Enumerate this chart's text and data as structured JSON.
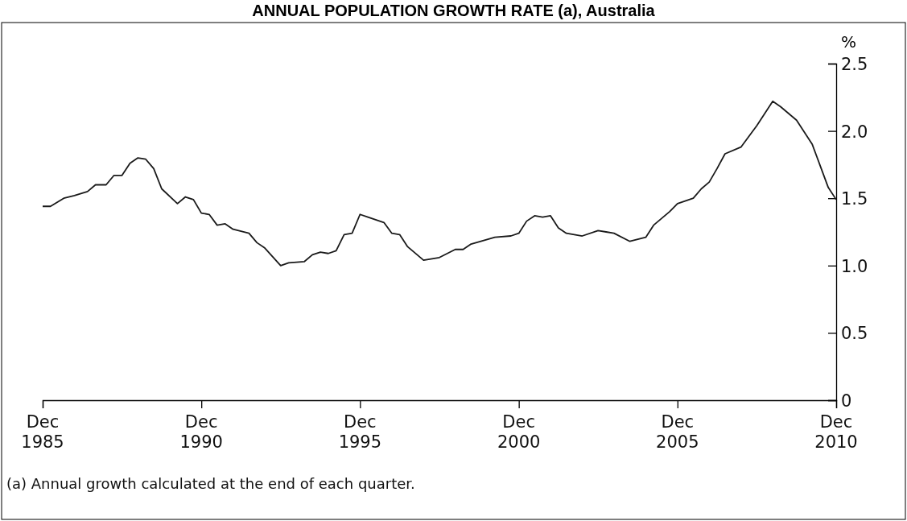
{
  "chart_data": {
    "type": "line",
    "title": "ANNUAL POPULATION GROWTH RATE (a), Australia",
    "ylabel": "%",
    "annotations": [
      "(a) Annual growth calculated at the end of each quarter."
    ],
    "xlim": [
      "1985-12",
      "2010-12"
    ],
    "xticks": [
      {
        "value": "1985-12",
        "label": "Dec 1985"
      },
      {
        "value": "1990-12",
        "label": "Dec 1990"
      },
      {
        "value": "1995-12",
        "label": "Dec 1995"
      },
      {
        "value": "2000-12",
        "label": "Dec 2000"
      },
      {
        "value": "2005-12",
        "label": "Dec 2005"
      },
      {
        "value": "2010-12",
        "label": "Dec 2010"
      }
    ],
    "ylim": [
      0,
      2.5
    ],
    "yticks": [
      {
        "value": 0,
        "label": "0"
      },
      {
        "value": 0.5,
        "label": "0.5"
      },
      {
        "value": 1,
        "label": "1.0"
      },
      {
        "value": 1.5,
        "label": "1.5"
      },
      {
        "value": 2,
        "label": "2.0"
      },
      {
        "value": 2.5,
        "label": "2.5"
      }
    ],
    "grid": false,
    "marker": "none",
    "line_style": "solid",
    "series": [
      {
        "color": "#1a1a1a",
        "x": [
          "1985-12",
          "1986-03",
          "1986-08",
          "1986-12",
          "1987-05",
          "1987-08",
          "1987-12",
          "1988-03",
          "1988-06",
          "1988-09",
          "1988-12",
          "1989-03",
          "1989-06",
          "1989-09",
          "1990-03",
          "1990-06",
          "1990-09",
          "1990-12",
          "1991-03",
          "1991-06",
          "1991-09",
          "1991-12",
          "1992-06",
          "1992-09",
          "1992-12",
          "1993-06",
          "1993-09",
          "1994-03",
          "1994-06",
          "1994-09",
          "1994-12",
          "1995-03",
          "1995-06",
          "1995-09",
          "1995-12",
          "1996-03",
          "1996-09",
          "1996-12",
          "1997-03",
          "1997-06",
          "1997-12",
          "1998-06",
          "1998-12",
          "1999-03",
          "1999-06",
          "2000-03",
          "2000-09",
          "2000-12",
          "2001-03",
          "2001-06",
          "2001-09",
          "2001-12",
          "2002-03",
          "2002-06",
          "2002-12",
          "2003-06",
          "2003-09",
          "2003-12",
          "2004-06",
          "2004-12",
          "2005-03",
          "2005-09",
          "2005-12",
          "2006-06",
          "2006-09",
          "2006-12",
          "2007-03",
          "2007-06",
          "2007-12",
          "2008-06",
          "2008-12",
          "2009-03",
          "2009-09",
          "2010-03",
          "2010-06",
          "2010-09",
          "2010-12"
        ],
        "values": [
          1.44,
          1.44,
          1.5,
          1.52,
          1.55,
          1.6,
          1.6,
          1.67,
          1.67,
          1.76,
          1.8,
          1.79,
          1.72,
          1.57,
          1.46,
          1.51,
          1.49,
          1.39,
          1.38,
          1.3,
          1.31,
          1.27,
          1.24,
          1.17,
          1.13,
          1.0,
          1.02,
          1.03,
          1.08,
          1.1,
          1.09,
          1.11,
          1.23,
          1.24,
          1.38,
          1.36,
          1.32,
          1.24,
          1.23,
          1.14,
          1.04,
          1.06,
          1.12,
          1.12,
          1.16,
          1.21,
          1.22,
          1.24,
          1.33,
          1.37,
          1.36,
          1.37,
          1.28,
          1.24,
          1.22,
          1.26,
          1.25,
          1.24,
          1.18,
          1.21,
          1.3,
          1.4,
          1.46,
          1.5,
          1.57,
          1.62,
          1.72,
          1.83,
          1.88,
          2.04,
          2.22,
          2.18,
          2.08,
          1.9,
          1.74,
          1.58,
          1.49
        ]
      }
    ]
  }
}
